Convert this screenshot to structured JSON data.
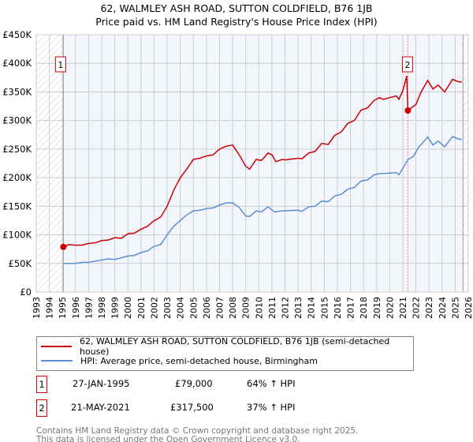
{
  "title": "62, WALMLEY ASH ROAD, SUTTON COLDFIELD, B76 1JB",
  "subtitle": "Price paid vs. HM Land Registry's House Price Index (HPI)",
  "chart_data": {
    "type": "line",
    "title": "62, WALMLEY ASH ROAD, SUTTON COLDFIELD, B76 1JB",
    "subtitle": "Price paid vs. HM Land Registry's House Price Index (HPI)",
    "xlim": [
      1993,
      2026
    ],
    "ylim": [
      0,
      450000
    ],
    "x_ticks": [
      "1993",
      "1994",
      "1995",
      "1996",
      "1997",
      "1998",
      "1999",
      "2000",
      "2001",
      "2002",
      "2003",
      "2004",
      "2005",
      "2006",
      "2007",
      "2008",
      "2009",
      "2010",
      "2011",
      "2012",
      "2013",
      "2014",
      "2015",
      "2016",
      "2017",
      "2018",
      "2019",
      "2020",
      "2021",
      "2022",
      "2023",
      "2024",
      "2025",
      "2026"
    ],
    "y_ticks": [
      {
        "v": 0,
        "label": "£0"
      },
      {
        "v": 50000,
        "label": "£50K"
      },
      {
        "v": 100000,
        "label": "£100K"
      },
      {
        "v": 150000,
        "label": "£150K"
      },
      {
        "v": 200000,
        "label": "£200K"
      },
      {
        "v": 250000,
        "label": "£250K"
      },
      {
        "v": 300000,
        "label": "£300K"
      },
      {
        "v": 350000,
        "label": "£350K"
      },
      {
        "v": 400000,
        "label": "£400K"
      },
      {
        "v": 450000,
        "label": "£450K"
      }
    ],
    "grid": true,
    "shaded_range": [
      1995.07,
      2025.6
    ],
    "series": [
      {
        "name": "62, WALMLEY ASH ROAD, SUTTON COLDFIELD, B76 1JB (semi-detached house)",
        "color": "#cc0000",
        "x": [
          1995.07,
          1995.5,
          1996,
          1996.5,
          1997,
          1997.5,
          1998,
          1998.5,
          1999,
          1999.5,
          2000,
          2000.5,
          2001,
          2001.5,
          2002,
          2002.5,
          2003,
          2003.5,
          2004,
          2004.5,
          2005,
          2005.5,
          2006,
          2006.5,
          2007,
          2007.5,
          2008,
          2008.5,
          2009,
          2009.3,
          2009.8,
          2010.2,
          2010.7,
          2011,
          2011.3,
          2011.8,
          2012,
          2013,
          2013.3,
          2013.8,
          2014.3,
          2014.8,
          2015.3,
          2015.8,
          2016.3,
          2016.8,
          2017.3,
          2017.8,
          2018.3,
          2018.8,
          2019.2,
          2019.5,
          2020,
          2020.5,
          2020.7,
          2021,
          2021.3,
          2021.39,
          2021.7,
          2022,
          2022.4,
          2022.9,
          2023.3,
          2023.7,
          2024.2,
          2024.8,
          2025.2,
          2025.5
        ],
        "y": [
          79000,
          83000,
          82000,
          82000,
          85000,
          86000,
          90000,
          91000,
          95000,
          94000,
          102000,
          103000,
          110000,
          115000,
          125000,
          131000,
          150000,
          178000,
          200000,
          215000,
          232000,
          234000,
          238000,
          240000,
          250000,
          255000,
          257000,
          240000,
          220000,
          215000,
          232000,
          230000,
          243000,
          240000,
          228000,
          232000,
          231000,
          234000,
          233000,
          243000,
          246000,
          260000,
          258000,
          274000,
          280000,
          295000,
          300000,
          318000,
          322000,
          335000,
          340000,
          337000,
          340000,
          343000,
          337000,
          352000,
          378000,
          317500,
          323000,
          328000,
          350000,
          370000,
          355000,
          362000,
          350000,
          372000,
          368000,
          367000
        ]
      },
      {
        "name": "HPI: Average price, semi-detached house, Birmingham",
        "color": "#5b8fd4",
        "x": [
          1995.07,
          1996,
          1996.5,
          1997,
          1998,
          1998.5,
          1999,
          2000,
          2000.5,
          2001,
          2001.5,
          2002,
          2002.5,
          2003,
          2003.5,
          2004,
          2004.5,
          2005,
          2005.5,
          2006,
          2006.5,
          2007,
          2007.5,
          2008,
          2008.5,
          2009,
          2009.3,
          2009.8,
          2010.2,
          2010.7,
          2011.2,
          2011.8,
          2013,
          2013.3,
          2013.8,
          2014.3,
          2014.8,
          2015.3,
          2015.8,
          2016.3,
          2016.8,
          2017.3,
          2017.8,
          2018.3,
          2018.8,
          2019.2,
          2020,
          2020.5,
          2020.7,
          2021,
          2021.4,
          2021.8,
          2022.2,
          2022.9,
          2023.3,
          2023.7,
          2024.2,
          2024.8,
          2025.2,
          2025.5
        ],
        "y": [
          50000,
          50000,
          52000,
          52000,
          56000,
          58000,
          57000,
          63000,
          64000,
          69000,
          72000,
          80000,
          83000,
          100000,
          115000,
          125000,
          135000,
          142000,
          143000,
          146000,
          147000,
          152000,
          156000,
          156000,
          148000,
          133000,
          132000,
          142000,
          140000,
          149000,
          140000,
          142000,
          143000,
          141000,
          149000,
          150000,
          159000,
          158000,
          168000,
          171000,
          180000,
          183000,
          194000,
          196000,
          205000,
          207000,
          208000,
          209000,
          205000,
          216000,
          232000,
          237000,
          253000,
          271000,
          257000,
          264000,
          254000,
          272000,
          268000,
          267000
        ]
      }
    ],
    "sales": [
      {
        "id": "1",
        "x": 1995.07,
        "y": 79000,
        "date": "27-JAN-1995",
        "price": "£79,000",
        "hpi": "64% ↑ HPI"
      },
      {
        "id": "2",
        "x": 2021.39,
        "y": 317500,
        "date": "21-MAY-2021",
        "price": "£317,500",
        "hpi": "37% ↑ HPI"
      }
    ]
  },
  "legend": {
    "red": "62, WALMLEY ASH ROAD, SUTTON COLDFIELD, B76 1JB (semi-detached house)",
    "blue": "HPI: Average price, semi-detached house, Birmingham"
  },
  "footer": {
    "line1": "Contains HM Land Registry data © Crown copyright and database right 2025.",
    "line2": "This data is licensed under the Open Government Licence v3.0."
  }
}
